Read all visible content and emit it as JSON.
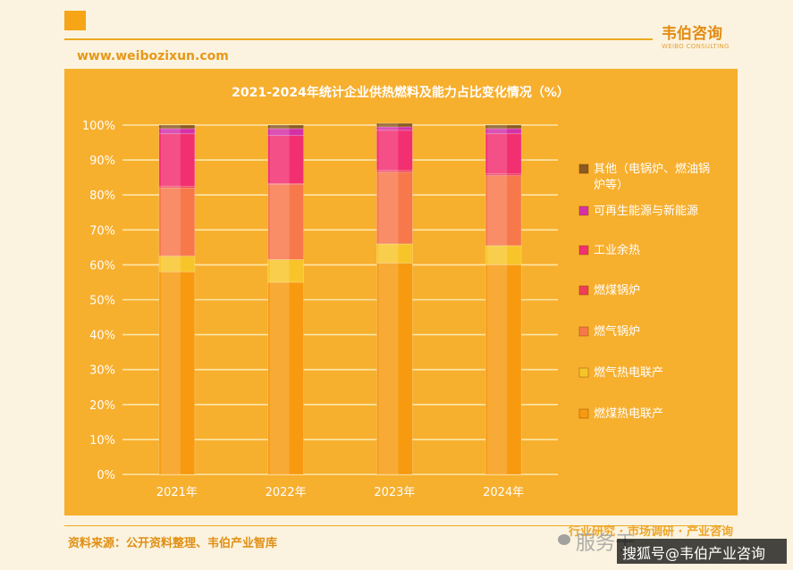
{
  "brand": {
    "name": "韦伯咨询",
    "sub": "WEIBO CONSULTING"
  },
  "site_url": "www.weibozixun.com",
  "footer": {
    "source": "资料来源：公开资料整理、韦伯产业智库",
    "tagline": "行业研究 · 市场调研 · 产业咨询"
  },
  "watermark": {
    "text1": "服务于",
    "text2": "搜狐号@韦伯产业咨询",
    "icon": "wechat-icon"
  },
  "chart_data": {
    "type": "bar",
    "stacked": true,
    "title": "2021-2024年统计企业供热燃料及能力占比变化情况（%）",
    "xlabel": "",
    "ylabel": "",
    "ylim": [
      0,
      100
    ],
    "yticks": [
      "0%",
      "10%",
      "20%",
      "30%",
      "40%",
      "50%",
      "60%",
      "70%",
      "80%",
      "90%",
      "100%"
    ],
    "categories": [
      "2021年",
      "2022年",
      "2023年",
      "2024年"
    ],
    "grid": true,
    "legend_position": "right",
    "series": [
      {
        "name": "燃煤热电联产",
        "color": "#F79A10",
        "values": [
          58,
          55,
          60.5,
          60
        ]
      },
      {
        "name": "燃气热电联产",
        "color": "#F7C52A",
        "values": [
          4.5,
          6.5,
          5.5,
          5.5
        ]
      },
      {
        "name": "燃气锅炉",
        "color": "#F7784A",
        "values": [
          19.5,
          21.5,
          20.5,
          20
        ]
      },
      {
        "name": "燃煤锅炉",
        "color": "#EE3E58",
        "values": [
          0.5,
          0.3,
          0.5,
          0.5
        ]
      },
      {
        "name": "工业余热",
        "color": "#F22F70",
        "values": [
          15,
          13.7,
          11.5,
          11.5
        ]
      },
      {
        "name": "可再生能源与新能源",
        "color": "#D431A8",
        "values": [
          1.5,
          2,
          1,
          1.5
        ]
      },
      {
        "name": "其他（电锅炉、燃油锅炉等）",
        "color": "#8A5A20",
        "values": [
          1,
          1,
          1,
          1
        ]
      }
    ]
  }
}
